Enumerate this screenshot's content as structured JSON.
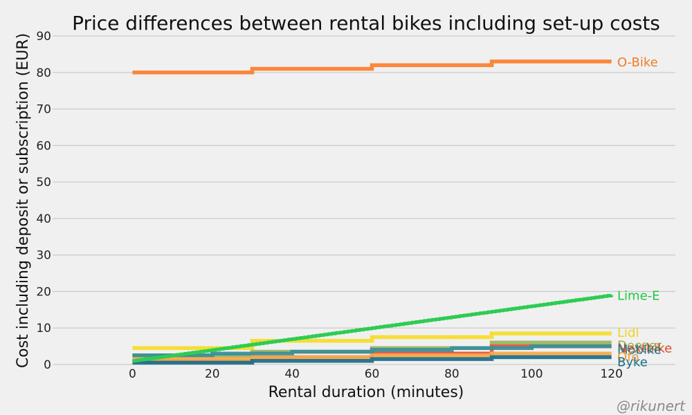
{
  "chart_data": {
    "type": "line",
    "title": "Price differences between rental bikes including set-up costs",
    "xlabel": "Rental duration (minutes)",
    "ylabel": "Cost including deposit or subscription (EUR)",
    "xlim": [
      -20,
      136
    ],
    "ylim": [
      0,
      90
    ],
    "xticks": [
      0,
      20,
      40,
      60,
      80,
      100,
      120
    ],
    "yticks": [
      0,
      10,
      20,
      30,
      40,
      50,
      60,
      70,
      80,
      90
    ],
    "grid": "horizontal",
    "legend": "labels at line ends (right)",
    "credit": "@rikunert",
    "series": [
      {
        "name": "O-Bike",
        "color": "#fc8130",
        "label_color": "#f07c28",
        "x": [
          0,
          30,
          30,
          60,
          60,
          90,
          90,
          120
        ],
        "y": [
          80,
          80,
          81,
          81,
          82,
          82,
          83,
          83
        ]
      },
      {
        "name": "Lidl",
        "color": "#f6dc2c",
        "label_color": "#f0d424",
        "x": [
          0,
          30,
          30,
          60,
          60,
          90,
          90,
          120
        ],
        "y": [
          4.5,
          4.5,
          6.5,
          6.5,
          7.5,
          7.5,
          8.5,
          8.5
        ]
      },
      {
        "name": "Deezer",
        "color": "#9bb562",
        "label_color": "#94b04a",
        "x": [
          0,
          30,
          30,
          60,
          60,
          90,
          90,
          120
        ],
        "y": [
          2.5,
          2.5,
          3.5,
          3.5,
          4.5,
          4.5,
          6,
          6
        ]
      },
      {
        "name": "Nextbike",
        "color": "#e8553a",
        "label_color": "#e04a2c",
        "x": [
          0,
          30,
          30,
          60,
          60,
          90,
          90,
          120
        ],
        "y": [
          1,
          1,
          2,
          2,
          3,
          3,
          5,
          5
        ]
      },
      {
        "name": "Mobike",
        "color": "#3a8f9a",
        "label_color": "#1e7a8c",
        "x": [
          0,
          20,
          20,
          40,
          40,
          60,
          60,
          80,
          80,
          100,
          100,
          120
        ],
        "y": [
          2.5,
          2.5,
          3,
          3,
          3.5,
          3.5,
          4,
          4,
          4.5,
          4.5,
          5,
          5
        ]
      },
      {
        "name": "Ofo",
        "color": "#f7a94d",
        "label_color": "#f09a30",
        "x": [
          0,
          30,
          30,
          60,
          60,
          90,
          90,
          120
        ],
        "y": [
          1.5,
          1.5,
          2,
          2,
          2.5,
          2.5,
          3,
          3
        ]
      },
      {
        "name": "Byke",
        "color": "#1f6f8b",
        "label_color": "#17708c",
        "x": [
          0,
          30,
          30,
          60,
          60,
          90,
          90,
          120
        ],
        "y": [
          0.5,
          0.5,
          1,
          1,
          1.5,
          1.5,
          2,
          2
        ]
      },
      {
        "name": "Lime-E",
        "color": "#2ecc52",
        "label_color": "#1fc842",
        "x": [
          0,
          120
        ],
        "y": [
          1,
          19
        ],
        "style": "ramp"
      }
    ]
  }
}
